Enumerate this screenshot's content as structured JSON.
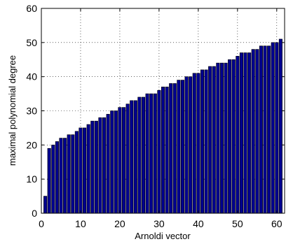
{
  "chart_data": {
    "type": "bar",
    "title": "",
    "xlabel": "Arnoldi vector",
    "ylabel": "maximal polynomial degree",
    "xlim": [
      0,
      62
    ],
    "ylim": [
      0,
      60
    ],
    "xticks": [
      0,
      10,
      20,
      30,
      40,
      50,
      60
    ],
    "yticks": [
      0,
      10,
      20,
      30,
      40,
      50,
      60
    ],
    "grid": true,
    "bar_color": "#00008f",
    "x": [
      1,
      2,
      3,
      4,
      5,
      6,
      7,
      8,
      9,
      10,
      11,
      12,
      13,
      14,
      15,
      16,
      17,
      18,
      19,
      20,
      21,
      22,
      23,
      24,
      25,
      26,
      27,
      28,
      29,
      30,
      31,
      32,
      33,
      34,
      35,
      36,
      37,
      38,
      39,
      40,
      41,
      42,
      43,
      44,
      45,
      46,
      47,
      48,
      49,
      50,
      51,
      52,
      53,
      54,
      55,
      56,
      57,
      58,
      59,
      60,
      61
    ],
    "values": [
      5,
      19,
      20,
      21,
      22,
      22,
      23,
      23,
      24,
      25,
      25,
      26,
      27,
      27,
      28,
      28,
      29,
      30,
      30,
      31,
      31,
      32,
      33,
      33,
      34,
      34,
      35,
      35,
      35,
      36,
      37,
      37,
      38,
      38,
      39,
      39,
      40,
      40,
      41,
      41,
      42,
      42,
      43,
      43,
      44,
      44,
      44,
      45,
      45,
      46,
      47,
      47,
      47,
      48,
      48,
      49,
      49,
      49,
      50,
      50,
      51
    ]
  }
}
